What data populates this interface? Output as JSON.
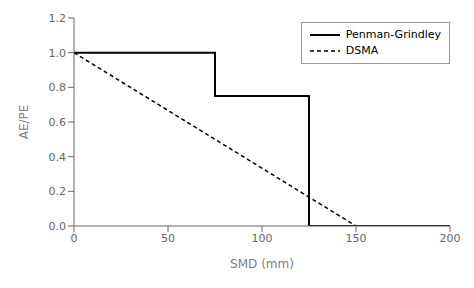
{
  "chart_data": {
    "type": "line",
    "xlabel": "SMD (mm)",
    "ylabel": "AE/PE",
    "xlim": [
      0,
      200
    ],
    "ylim": [
      0,
      1.2
    ],
    "xticks": [
      0,
      50,
      100,
      150,
      200
    ],
    "yticks": [
      {
        "value": 0,
        "label": "0.0"
      },
      0.2,
      0.4,
      0.6,
      0.8,
      {
        "value": 1.0,
        "label": "1.0"
      },
      1.2
    ],
    "grid": false,
    "legend": "upper right",
    "series": [
      {
        "name": "Penman-Grindley",
        "color": "#000000",
        "line_style": "solid",
        "x": [
          0,
          75,
          75,
          125,
          125,
          200
        ],
        "values": [
          1.0,
          1.0,
          0.75,
          0.75,
          0.0,
          0.0
        ]
      },
      {
        "name": "DSMA",
        "color": "#000000",
        "line_style": "dashed",
        "x": [
          0,
          150
        ],
        "values": [
          1.0,
          0.0
        ]
      }
    ]
  }
}
